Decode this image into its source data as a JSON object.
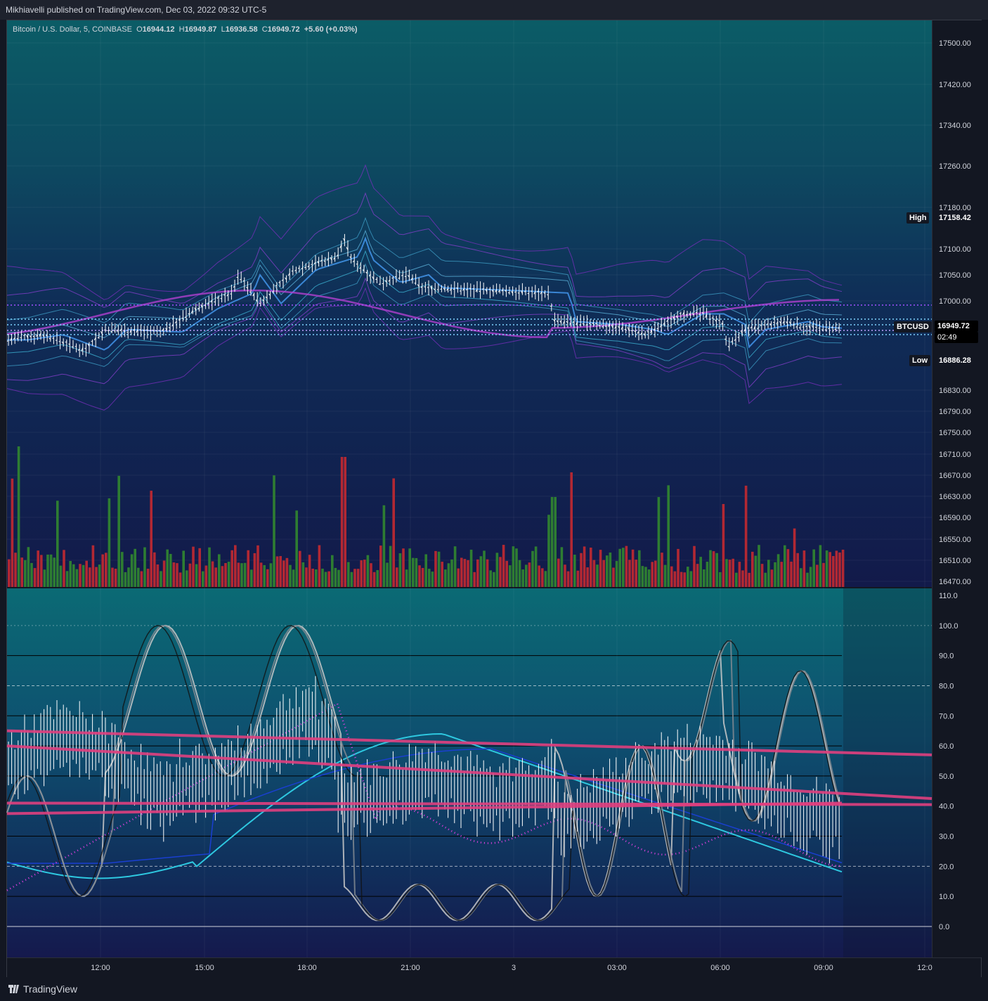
{
  "header": {
    "published": "Mikhiavelli published on TradingView.com, Dec 03, 2022 09:32 UTC-5"
  },
  "legend": {
    "symbol": "Bitcoin / U.S. Dollar, 5, COINBASE",
    "o_label": "O",
    "o": "16944.12",
    "h_label": "H",
    "h": "16949.87",
    "l_label": "L",
    "l": "16936.58",
    "c_label": "C",
    "c": "16949.72",
    "change": "+5.60 (+0.03%)"
  },
  "price_axis": {
    "ticks": [
      "17500.00",
      "17420.00",
      "17340.00",
      "17260.00",
      "17180.00",
      "17100.00",
      "17050.00",
      "17000.00",
      "16830.00",
      "16790.00",
      "16750.00",
      "16710.00",
      "16670.00",
      "16630.00",
      "16590.00",
      "16550.00",
      "16510.00",
      "16470.00"
    ],
    "high_label": "High",
    "high_value": "17158.42",
    "low_label": "Low",
    "low_value": "16886.28",
    "symbol_tag": "BTCUSD",
    "last_price": "16949.72",
    "countdown": "02:49"
  },
  "osc_axis": {
    "ticks": [
      "110.0",
      "100.0",
      "90.0",
      "80.0",
      "70.0",
      "60.0",
      "50.0",
      "40.0",
      "30.0",
      "20.0",
      "10.0",
      "0.0"
    ]
  },
  "time_axis": {
    "ticks": [
      "12:00",
      "15:00",
      "18:00",
      "21:00",
      "3",
      "03:00",
      "06:00",
      "09:00",
      "12:0"
    ]
  },
  "footer": {
    "brand": "TradingView"
  },
  "colors": {
    "up": "#2e7d32",
    "down": "#b22833",
    "trend": "#e0407f",
    "candle": "#ffffff"
  },
  "chart_data": {
    "type": "line",
    "title": "Bitcoin / U.S. Dollar, 5, COINBASE",
    "x": [
      "12:00",
      "15:00",
      "18:00",
      "21:00",
      "3",
      "03:00",
      "06:00",
      "09:00"
    ],
    "series": [
      {
        "values": [
          16925,
          16950,
          17040,
          17080,
          17025,
          17010,
          16960,
          16955
        ]
      }
    ],
    "ylim": [
      16470,
      17520
    ],
    "oscillator": {
      "ylim": [
        0,
        110
      ],
      "levels": [
        20,
        80
      ]
    }
  }
}
